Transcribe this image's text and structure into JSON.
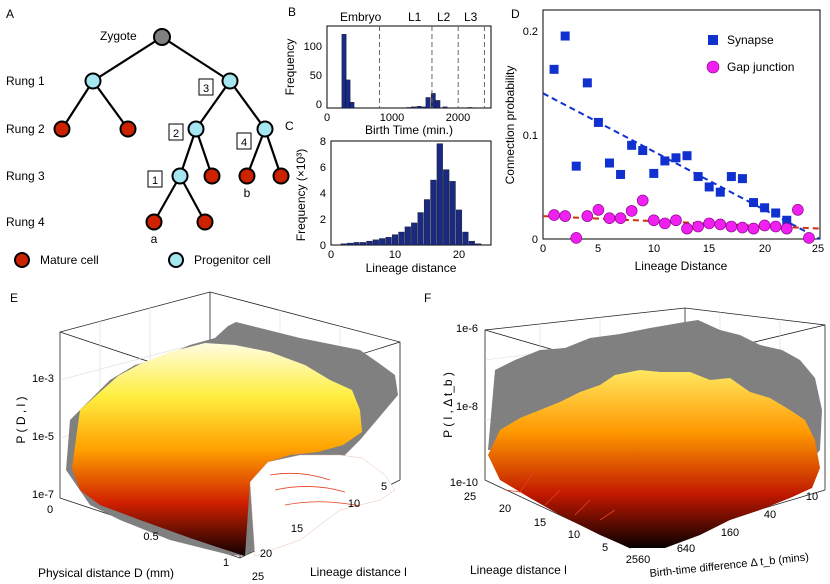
{
  "panels": {
    "A": "A",
    "B": "B",
    "C": "C",
    "D": "D",
    "E": "E",
    "F": "F"
  },
  "tree": {
    "root_label": "Zygote",
    "rungs": [
      "Rung 1",
      "Rung 2",
      "Rung 3",
      "Rung 4"
    ],
    "boxes": [
      "1",
      "2",
      "3",
      "4"
    ],
    "leaf_a": "a",
    "leaf_b": "b",
    "legend": {
      "mature": "Mature cell",
      "progenitor": "Progenitor cell"
    },
    "colors": {
      "root": "#808080",
      "progenitor": "#a6e6f0",
      "mature": "#cc2200"
    }
  },
  "chart_data": [
    {
      "id": "B",
      "type": "bar",
      "xlabel": "Birth Time (min.)",
      "ylabel": "Frequency",
      "xlim": [
        0,
        2500
      ],
      "ylim": [
        0,
        140
      ],
      "xticks": [
        "0",
        "1000",
        "2000"
      ],
      "yticks": [
        "0",
        "50",
        "100"
      ],
      "stages": [
        "Embryo",
        "L1",
        "L2",
        "L3"
      ],
      "stage_boundaries": [
        800,
        1600,
        2000,
        2400
      ],
      "bins_x": [
        260,
        320,
        380,
        1250,
        1320,
        1400,
        1470,
        1540,
        1620,
        1690,
        1800,
        2180
      ],
      "values": [
        126,
        48,
        10,
        1,
        2,
        3,
        2,
        18,
        25,
        13,
        2,
        1
      ],
      "color": "#1a2a80"
    },
    {
      "id": "C",
      "type": "bar",
      "xlabel": "Lineage distance",
      "ylabel": "Frequency (×10³)",
      "xlim": [
        0,
        25
      ],
      "ylim": [
        0,
        8
      ],
      "xticks": [
        "0",
        "10",
        "20"
      ],
      "yticks": [
        "0",
        "2",
        "4",
        "6",
        "8"
      ],
      "bins_x": [
        2,
        3,
        4,
        5,
        6,
        7,
        8,
        9,
        10,
        11,
        12,
        13,
        14,
        15,
        16,
        17,
        18,
        19,
        20,
        21,
        22,
        23
      ],
      "values": [
        0.1,
        0.15,
        0.2,
        0.2,
        0.3,
        0.4,
        0.5,
        0.6,
        0.8,
        1.0,
        1.4,
        1.7,
        2.5,
        3.5,
        5.0,
        7.8,
        5.8,
        4.9,
        2.7,
        1.0,
        0.3,
        0.1
      ],
      "color": "#1a2a80"
    },
    {
      "id": "D",
      "type": "scatter",
      "xlabel": "Lineage Distance",
      "ylabel": "Connection probability",
      "xlim": [
        0,
        25
      ],
      "ylim": [
        0,
        0.22
      ],
      "xticks": [
        "0",
        "5",
        "10",
        "15",
        "20",
        "25"
      ],
      "yticks": [
        "0",
        "0.1",
        "0.2"
      ],
      "legend": [
        "Synapse",
        "Gap junction"
      ],
      "series": [
        {
          "name": "Synapse",
          "color": "#1030d0",
          "x": [
            1,
            2,
            3,
            4,
            5,
            6,
            7,
            8,
            9,
            10,
            11,
            12,
            13,
            14,
            15,
            16,
            17,
            18,
            19,
            20,
            21,
            22
          ],
          "y": [
            0.163,
            0.195,
            0.07,
            0.15,
            0.112,
            0.073,
            0.062,
            0.09,
            0.085,
            0.063,
            0.075,
            0.078,
            0.08,
            0.06,
            0.05,
            0.045,
            0.06,
            0.058,
            0.035,
            0.03,
            0.025,
            0.018
          ]
        },
        {
          "name": "Gap junction",
          "color": "#f020f0",
          "x": [
            1,
            2,
            3,
            4,
            5,
            6,
            7,
            8,
            9,
            10,
            11,
            12,
            13,
            14,
            15,
            16,
            17,
            18,
            19,
            20,
            21,
            22,
            23,
            24
          ],
          "y": [
            0.023,
            0.022,
            0.001,
            0.022,
            0.028,
            0.02,
            0.02,
            0.027,
            0.037,
            0.018,
            0.015,
            0.018,
            0.01,
            0.012,
            0.015,
            0.014,
            0.012,
            0.011,
            0.01,
            0.013,
            0.012,
            0.01,
            0.028,
            0.001
          ]
        }
      ],
      "fits": [
        {
          "name": "Synapse fit",
          "color": "#1030d0",
          "x": [
            0,
            25
          ],
          "y": [
            0.14,
            0.0
          ]
        },
        {
          "name": "Gap junction fit",
          "color": "#d03010",
          "x": [
            0,
            25
          ],
          "y": [
            0.022,
            0.01
          ]
        }
      ]
    },
    {
      "id": "E",
      "type": "surface",
      "zlabel": "P ( D , l )",
      "xlabel": "Physical distance D (mm)",
      "ylabel": "Lineage distance l",
      "zticks": [
        "1e-3",
        "1e-5",
        "1e-7"
      ],
      "xticks": [
        "0",
        "0.5",
        "1"
      ],
      "yticks": [
        "5",
        "10",
        "15",
        "20",
        "25"
      ]
    },
    {
      "id": "F",
      "type": "surface",
      "zlabel": "P ( l , Δ t_b )",
      "xlabel": "Lineage distance l",
      "ylabel": "Birth-time difference Δ t_b (mins)",
      "zticks": [
        "1e-6",
        "1e-8",
        "1e-10"
      ],
      "xticks": [
        "25",
        "20",
        "15",
        "10",
        "5"
      ],
      "yticks": [
        "10",
        "40",
        "160",
        "640",
        "2560"
      ]
    }
  ]
}
